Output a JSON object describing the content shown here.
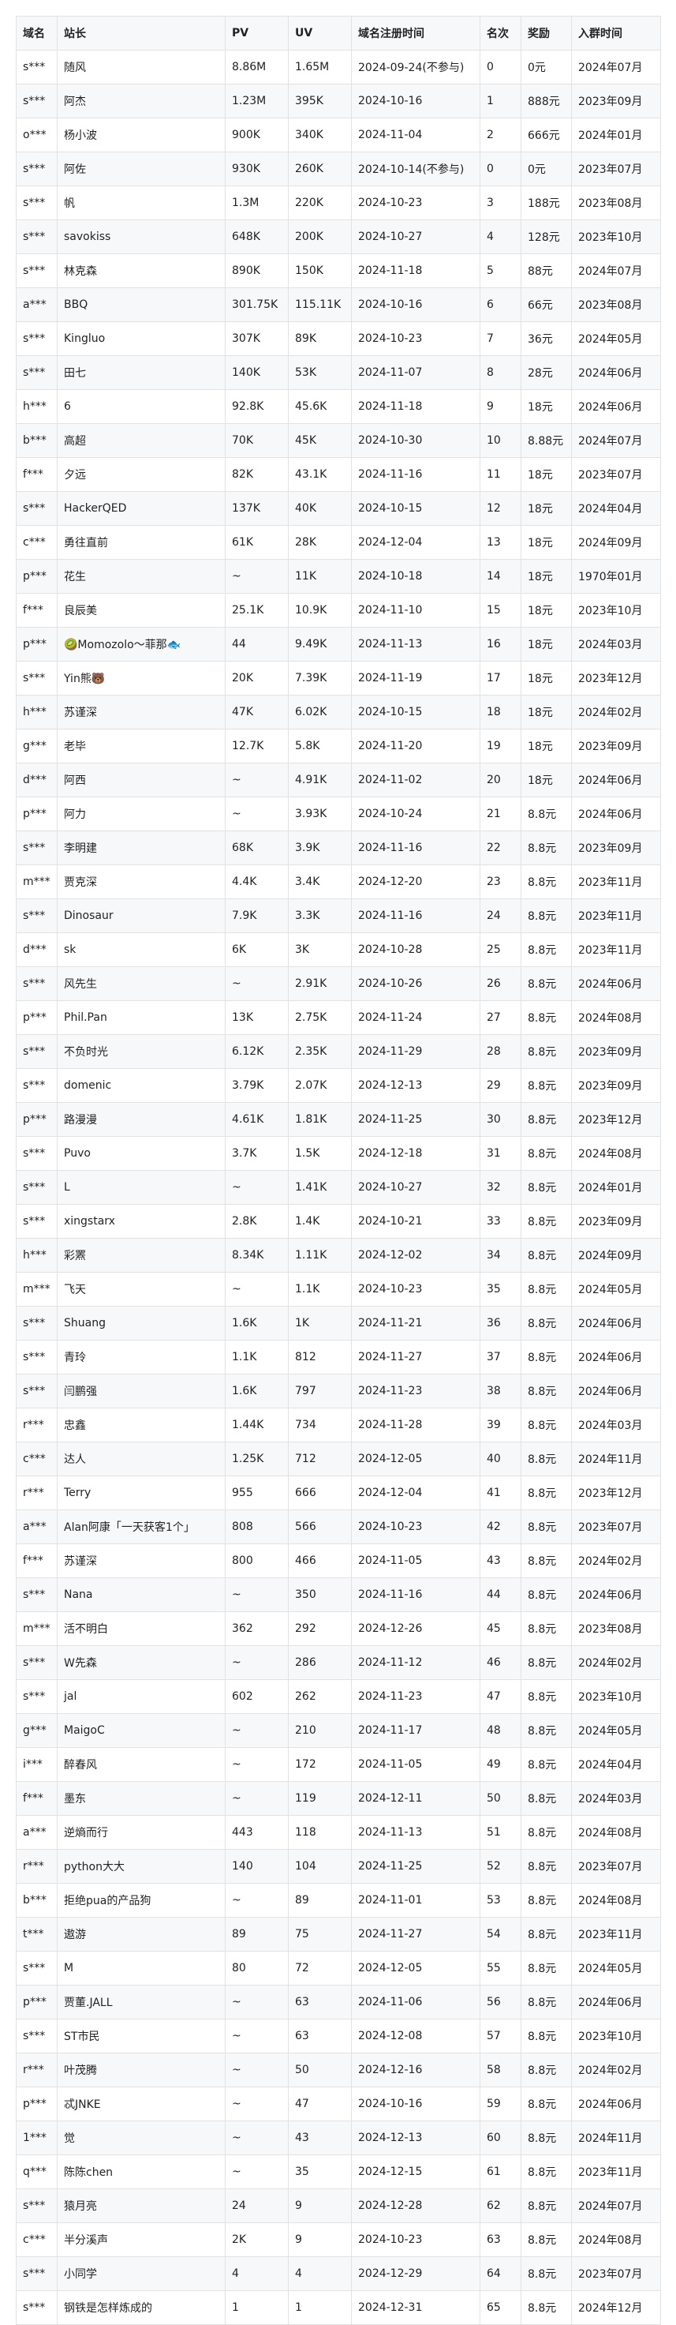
{
  "table": {
    "headers": [
      "域名",
      "站长",
      "PV",
      "UV",
      "域名注册时间",
      "名次",
      "奖励",
      "入群时间"
    ],
    "rows": [
      [
        "s***",
        "随风",
        "8.86M",
        "1.65M",
        "2024-09-24(不参与)",
        "0",
        "0元",
        "2024年07月"
      ],
      [
        "s***",
        "阿杰",
        "1.23M",
        "395K",
        "2024-10-16",
        "1",
        "888元",
        "2023年09月"
      ],
      [
        "o***",
        "杨小波",
        "900K",
        "340K",
        "2024-11-04",
        "2",
        "666元",
        "2024年01月"
      ],
      [
        "s***",
        "阿佐",
        "930K",
        "260K",
        "2024-10-14(不参与)",
        "0",
        "0元",
        "2023年07月"
      ],
      [
        "s***",
        "帆",
        "1.3M",
        "220K",
        "2024-10-23",
        "3",
        "188元",
        "2023年08月"
      ],
      [
        "s***",
        "savokiss",
        "648K",
        "200K",
        "2024-10-27",
        "4",
        "128元",
        "2023年10月"
      ],
      [
        "s***",
        "林克森",
        "890K",
        "150K",
        "2024-11-18",
        "5",
        "88元",
        "2024年07月"
      ],
      [
        "a***",
        "BBQ",
        "301.75K",
        "115.11K",
        "2024-10-16",
        "6",
        "66元",
        "2023年08月"
      ],
      [
        "s***",
        "Kingluo",
        "307K",
        "89K",
        "2024-10-23",
        "7",
        "36元",
        "2024年05月"
      ],
      [
        "s***",
        "田七",
        "140K",
        "53K",
        "2024-11-07",
        "8",
        "28元",
        "2024年06月"
      ],
      [
        "h***",
        "6",
        "92.8K",
        "45.6K",
        "2024-11-18",
        "9",
        "18元",
        "2024年06月"
      ],
      [
        "b***",
        "高超",
        "70K",
        "45K",
        "2024-10-30",
        "10",
        "8.88元",
        "2024年07月"
      ],
      [
        "f***",
        "夕远",
        "82K",
        "43.1K",
        "2024-11-16",
        "11",
        "18元",
        "2023年07月"
      ],
      [
        "s***",
        "HackerQED",
        "137K",
        "40K",
        "2024-10-15",
        "12",
        "18元",
        "2024年04月"
      ],
      [
        "c***",
        "勇往直前",
        "61K",
        "28K",
        "2024-12-04",
        "13",
        "18元",
        "2024年09月"
      ],
      [
        "p***",
        "花生",
        "~",
        "11K",
        "2024-10-18",
        "14",
        "18元",
        "1970年01月"
      ],
      [
        "f***",
        "良辰美",
        "25.1K",
        "10.9K",
        "2024-11-10",
        "15",
        "18元",
        "2023年10月"
      ],
      [
        "p***",
        "🥝Momozolo～菲那🐟",
        "44",
        "9.49K",
        "2024-11-13",
        "16",
        "18元",
        "2024年03月"
      ],
      [
        "s***",
        "Yin熊🐻",
        "20K",
        "7.39K",
        "2024-11-19",
        "17",
        "18元",
        "2023年12月"
      ],
      [
        "h***",
        "苏谨深",
        "47K",
        "6.02K",
        "2024-10-15",
        "18",
        "18元",
        "2024年02月"
      ],
      [
        "g***",
        "老毕",
        "12.7K",
        "5.8K",
        "2024-11-20",
        "19",
        "18元",
        "2023年09月"
      ],
      [
        "d***",
        "阿西",
        "~",
        "4.91K",
        "2024-11-02",
        "20",
        "18元",
        "2024年06月"
      ],
      [
        "p***",
        "阿力",
        "~",
        "3.93K",
        "2024-10-24",
        "21",
        "8.8元",
        "2024年06月"
      ],
      [
        "s***",
        "李明建",
        "68K",
        "3.9K",
        "2024-11-16",
        "22",
        "8.8元",
        "2023年09月"
      ],
      [
        "m***",
        "贾克深",
        "4.4K",
        "3.4K",
        "2024-12-20",
        "23",
        "8.8元",
        "2023年11月"
      ],
      [
        "s***",
        "Dinosaur",
        "7.9K",
        "3.3K",
        "2024-11-16",
        "24",
        "8.8元",
        "2023年11月"
      ],
      [
        "d***",
        "sk",
        "6K",
        "3K",
        "2024-10-28",
        "25",
        "8.8元",
        "2023年11月"
      ],
      [
        "s***",
        "风先生",
        "~",
        "2.91K",
        "2024-10-26",
        "26",
        "8.8元",
        "2024年06月"
      ],
      [
        "p***",
        "Phil.Pan",
        "13K",
        "2.75K",
        "2024-11-24",
        "27",
        "8.8元",
        "2024年08月"
      ],
      [
        "s***",
        "不负时光",
        "6.12K",
        "2.35K",
        "2024-11-29",
        "28",
        "8.8元",
        "2023年09月"
      ],
      [
        "s***",
        "domenic",
        "3.79K",
        "2.07K",
        "2024-12-13",
        "29",
        "8.8元",
        "2023年09月"
      ],
      [
        "p***",
        "路漫漫",
        "4.61K",
        "1.81K",
        "2024-11-25",
        "30",
        "8.8元",
        "2023年12月"
      ],
      [
        "s***",
        "Puvo",
        "3.7K",
        "1.5K",
        "2024-12-18",
        "31",
        "8.8元",
        "2024年08月"
      ],
      [
        "s***",
        "L",
        "~",
        "1.41K",
        "2024-10-27",
        "32",
        "8.8元",
        "2024年01月"
      ],
      [
        "s***",
        "xingstarx",
        "2.8K",
        "1.4K",
        "2024-10-21",
        "33",
        "8.8元",
        "2023年09月"
      ],
      [
        "h***",
        "彩罴",
        "8.34K",
        "1.11K",
        "2024-12-02",
        "34",
        "8.8元",
        "2024年09月"
      ],
      [
        "m***",
        "飞天",
        "~",
        "1.1K",
        "2024-10-23",
        "35",
        "8.8元",
        "2024年05月"
      ],
      [
        "s***",
        "Shuang",
        "1.6K",
        "1K",
        "2024-11-21",
        "36",
        "8.8元",
        "2024年06月"
      ],
      [
        "s***",
        "青玲",
        "1.1K",
        "812",
        "2024-11-27",
        "37",
        "8.8元",
        "2024年06月"
      ],
      [
        "s***",
        "闫鹏强",
        "1.6K",
        "797",
        "2024-11-23",
        "38",
        "8.8元",
        "2024年06月"
      ],
      [
        "r***",
        "忠鑫",
        "1.44K",
        "734",
        "2024-11-28",
        "39",
        "8.8元",
        "2024年03月"
      ],
      [
        "c***",
        "达人",
        "1.25K",
        "712",
        "2024-12-05",
        "40",
        "8.8元",
        "2024年11月"
      ],
      [
        "r***",
        "Terry",
        "955",
        "666",
        "2024-12-04",
        "41",
        "8.8元",
        "2023年12月"
      ],
      [
        "a***",
        "Alan阿康「一天获客1个」",
        "808",
        "566",
        "2024-10-23",
        "42",
        "8.8元",
        "2023年07月"
      ],
      [
        "f***",
        "苏谨深",
        "800",
        "466",
        "2024-11-05",
        "43",
        "8.8元",
        "2024年02月"
      ],
      [
        "s***",
        "Nana",
        "~",
        "350",
        "2024-11-16",
        "44",
        "8.8元",
        "2024年06月"
      ],
      [
        "m***",
        "活不明白",
        "362",
        "292",
        "2024-12-26",
        "45",
        "8.8元",
        "2023年08月"
      ],
      [
        "s***",
        "W先森",
        "~",
        "286",
        "2024-11-12",
        "46",
        "8.8元",
        "2024年02月"
      ],
      [
        "s***",
        "jal",
        "602",
        "262",
        "2024-11-23",
        "47",
        "8.8元",
        "2023年10月"
      ],
      [
        "g***",
        "MaigoC",
        "~",
        "210",
        "2024-11-17",
        "48",
        "8.8元",
        "2024年05月"
      ],
      [
        "i***",
        "醉春风",
        "~",
        "172",
        "2024-11-05",
        "49",
        "8.8元",
        "2024年04月"
      ],
      [
        "f***",
        "墨东",
        "~",
        "119",
        "2024-12-11",
        "50",
        "8.8元",
        "2024年03月"
      ],
      [
        "a***",
        "逆熵而行",
        "443",
        "118",
        "2024-11-13",
        "51",
        "8.8元",
        "2024年08月"
      ],
      [
        "r***",
        "python大大",
        "140",
        "104",
        "2024-11-25",
        "52",
        "8.8元",
        "2023年07月"
      ],
      [
        "b***",
        "拒绝pua的产品狗",
        "~",
        "89",
        "2024-11-01",
        "53",
        "8.8元",
        "2024年08月"
      ],
      [
        "t***",
        "遨游",
        "89",
        "75",
        "2024-11-27",
        "54",
        "8.8元",
        "2023年11月"
      ],
      [
        "s***",
        "M",
        "80",
        "72",
        "2024-12-05",
        "55",
        "8.8元",
        "2024年05月"
      ],
      [
        "p***",
        "贾董.JALL",
        "~",
        "63",
        "2024-11-06",
        "56",
        "8.8元",
        "2024年06月"
      ],
      [
        "s***",
        "ST市民",
        "~",
        "63",
        "2024-12-08",
        "57",
        "8.8元",
        "2023年10月"
      ],
      [
        "r***",
        "叶茂腾",
        "~",
        "50",
        "2024-12-16",
        "58",
        "8.8元",
        "2024年02月"
      ],
      [
        "p***",
        "忒JNKE",
        "~",
        "47",
        "2024-10-16",
        "59",
        "8.8元",
        "2024年06月"
      ],
      [
        "1***",
        "觉",
        "~",
        "43",
        "2024-12-13",
        "60",
        "8.8元",
        "2024年11月"
      ],
      [
        "q***",
        "陈陈chen",
        "~",
        "35",
        "2024-12-15",
        "61",
        "8.8元",
        "2023年11月"
      ],
      [
        "s***",
        "猿月亮",
        "24",
        "9",
        "2024-12-28",
        "62",
        "8.8元",
        "2024年07月"
      ],
      [
        "c***",
        "半分溪声",
        "2K",
        "9",
        "2024-10-23",
        "63",
        "8.8元",
        "2024年08月"
      ],
      [
        "s***",
        "小同学",
        "4",
        "4",
        "2024-12-29",
        "64",
        "8.8元",
        "2023年07月"
      ],
      [
        "s***",
        "钢铁是怎样炼成的",
        "1",
        "1",
        "2024-12-31",
        "65",
        "8.8元",
        "2024年12月"
      ]
    ]
  }
}
